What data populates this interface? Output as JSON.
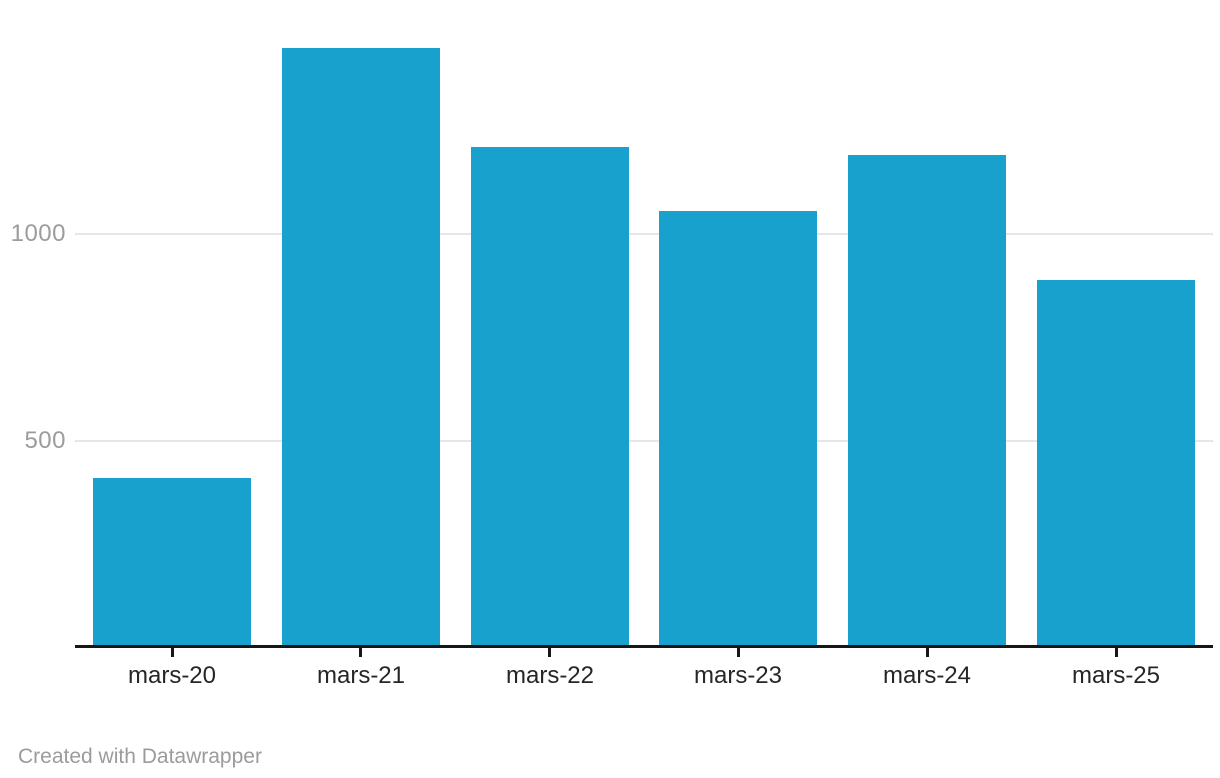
{
  "chart_data": {
    "type": "bar",
    "categories": [
      "mars-20",
      "mars-21",
      "mars-22",
      "mars-23",
      "mars-24",
      "mars-25"
    ],
    "values": [
      410,
      1450,
      1210,
      1055,
      1190,
      890
    ],
    "title": "",
    "xlabel": "",
    "ylabel": "",
    "yticks": [
      500,
      1000
    ],
    "ylim": [
      0,
      1550
    ],
    "grid": true,
    "legend": false,
    "bar_color": "#18a1cd"
  },
  "colors": {
    "bar": "#18a1cd",
    "gridline": "#e6e6e6",
    "axis": "#161616",
    "tick": "#161616",
    "y_label": "#9c9c9c",
    "x_label": "#262626",
    "footer_text": "#9b9b9b",
    "background": "#ffffff"
  },
  "footer": {
    "credit": "Created with Datawrapper"
  }
}
